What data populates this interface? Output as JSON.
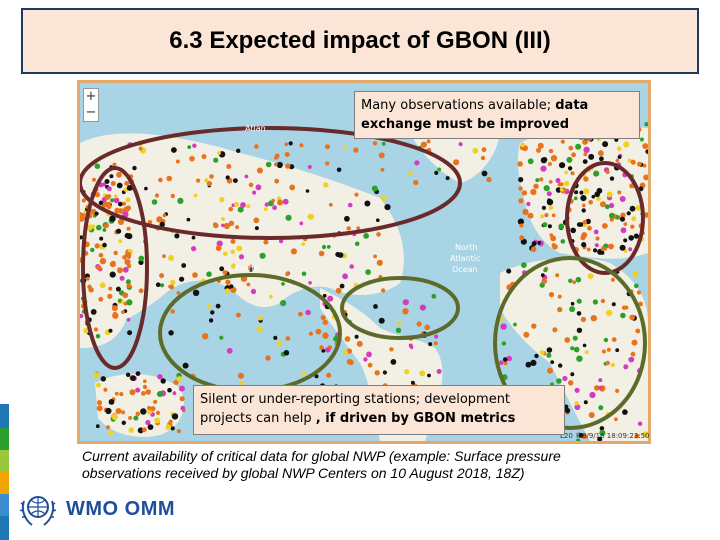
{
  "slide": {
    "title": "6.3 Expected impact of GBON (III)",
    "caption": "Current availability of critical data for global NWP (example: Surface pressure observations received by global NWP Centers on 10 August 2018, 18Z)"
  },
  "callouts": {
    "top_plain": "Many observations available; ",
    "top_bold": "data exchange must be improved",
    "bottom_plain": "Silent or under-reporting stations; development projects can help , if driven by GBON metrics",
    "bottom_bold": ", if driven by GBON metrics"
  },
  "map": {
    "zoom_in": "+",
    "zoom_out": "−",
    "labels": {
      "atlantic_nw": "Atlan",
      "pacific": "Pacific",
      "north_atlantic_1": "North",
      "north_atlantic_2": "Atlantic",
      "north_atlantic_3": "Ocean"
    },
    "timestamp": "L20 ©8/9/16 18:09:23:50",
    "colors": {
      "ocean": "#a8d4e6",
      "land": "#f2efe4",
      "circle_dark": "#6b2a2a",
      "circle_olive": "#5d6b2a"
    }
  },
  "logo": {
    "text": "WMO OMM",
    "icon": "wmo-globe-laurel-icon"
  },
  "side_strip_colors": [
    "#1f77b4",
    "#2ca02c",
    "#98c93c",
    "#f0a500",
    "#3c8dd0",
    "#1f77b4"
  ]
}
